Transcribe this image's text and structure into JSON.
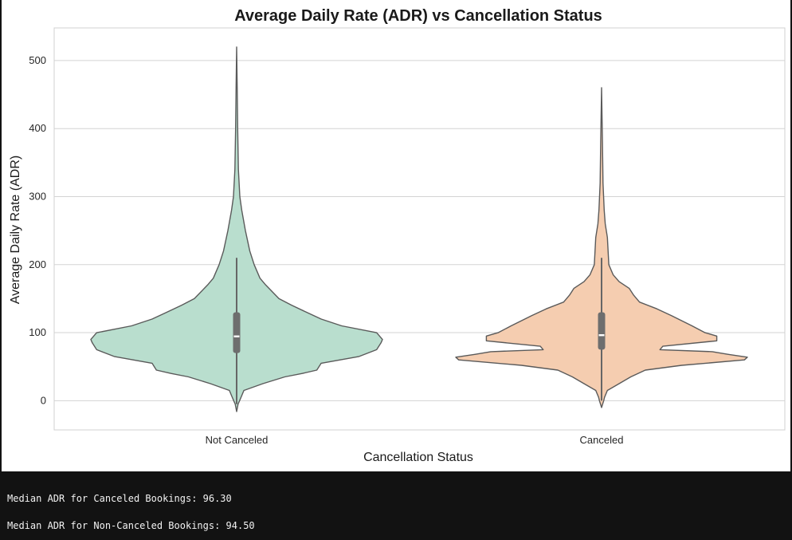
{
  "chart_data": {
    "type": "violin",
    "title": "Average Daily Rate (ADR) vs Cancellation Status",
    "xlabel": "Cancellation Status",
    "ylabel": "Average Daily Rate (ADR)",
    "ylim": [
      -43,
      548
    ],
    "yticks": [
      0,
      100,
      200,
      300,
      400,
      500
    ],
    "grid": "horizontal",
    "categories": [
      "Not Canceled",
      "Canceled"
    ],
    "colors": [
      "#b9dece",
      "#f5cdb0"
    ],
    "series": [
      {
        "category": "Not Canceled",
        "min": -16,
        "q1": 70,
        "median": 94.5,
        "q3": 130,
        "whisker_low": -5,
        "whisker_high": 210,
        "max": 520,
        "density": [
          [
            -16,
            0.0
          ],
          [
            -5,
            0.01
          ],
          [
            0,
            0.02
          ],
          [
            5,
            0.03
          ],
          [
            15,
            0.05
          ],
          [
            25,
            0.18
          ],
          [
            35,
            0.33
          ],
          [
            40,
            0.45
          ],
          [
            45,
            0.55
          ],
          [
            55,
            0.58
          ],
          [
            65,
            0.84
          ],
          [
            75,
            0.96
          ],
          [
            85,
            0.99
          ],
          [
            90,
            1.0
          ],
          [
            100,
            0.96
          ],
          [
            110,
            0.72
          ],
          [
            120,
            0.58
          ],
          [
            130,
            0.48
          ],
          [
            140,
            0.38
          ],
          [
            150,
            0.29
          ],
          [
            170,
            0.2
          ],
          [
            180,
            0.16
          ],
          [
            200,
            0.12
          ],
          [
            220,
            0.09
          ],
          [
            250,
            0.06
          ],
          [
            280,
            0.035
          ],
          [
            300,
            0.022
          ],
          [
            340,
            0.012
          ],
          [
            400,
            0.007
          ],
          [
            460,
            0.004
          ],
          [
            520,
            0.0
          ]
        ]
      },
      {
        "category": "Canceled",
        "min": -10,
        "q1": 75,
        "median": 96.3,
        "q3": 130,
        "whisker_low": 0,
        "whisker_high": 210,
        "max": 460,
        "density": [
          [
            -10,
            0.0
          ],
          [
            0,
            0.015
          ],
          [
            5,
            0.02
          ],
          [
            15,
            0.04
          ],
          [
            25,
            0.12
          ],
          [
            35,
            0.2
          ],
          [
            45,
            0.3
          ],
          [
            52,
            0.55
          ],
          [
            60,
            0.98
          ],
          [
            64,
            1.0
          ],
          [
            68,
            0.87
          ],
          [
            72,
            0.76
          ],
          [
            75,
            0.4
          ],
          [
            80,
            0.42
          ],
          [
            88,
            0.79
          ],
          [
            95,
            0.79
          ],
          [
            100,
            0.71
          ],
          [
            110,
            0.62
          ],
          [
            125,
            0.48
          ],
          [
            135,
            0.38
          ],
          [
            145,
            0.26
          ],
          [
            155,
            0.22
          ],
          [
            165,
            0.19
          ],
          [
            175,
            0.12
          ],
          [
            185,
            0.08
          ],
          [
            200,
            0.05
          ],
          [
            220,
            0.045
          ],
          [
            240,
            0.04
          ],
          [
            260,
            0.025
          ],
          [
            280,
            0.018
          ],
          [
            320,
            0.01
          ],
          [
            380,
            0.006
          ],
          [
            460,
            0.0
          ]
        ]
      }
    ]
  },
  "console": {
    "line1": "Median ADR for Canceled Bookings: 96.30",
    "line2": "Median ADR for Non-Canceled Bookings: 94.50"
  }
}
